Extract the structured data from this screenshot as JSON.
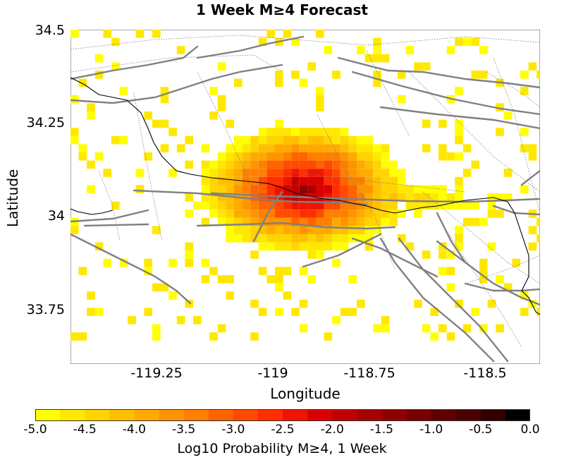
{
  "title": "1 Week M≥4 Forecast",
  "xlabel": "Longitude",
  "ylabel": "Latitude",
  "x_ticks": [
    "-119.25",
    "-119",
    "-118.75",
    "-118.5"
  ],
  "y_ticks": [
    "34.5",
    "34.25",
    "34",
    "33.75"
  ],
  "colorbar": {
    "label": "Log10 Probability M≥4, 1 Week",
    "ticks": [
      "-5.0",
      "-4.5",
      "-4.0",
      "-3.5",
      "-3.0",
      "-2.5",
      "-2.0",
      "-1.5",
      "-1.0",
      "-0.5",
      "0.0"
    ],
    "range": [
      -5.0,
      0.0
    ]
  },
  "chart_data": {
    "type": "heatmap",
    "title": "1 Week M≥4 Forecast",
    "xlabel": "Longitude",
    "ylabel": "Latitude",
    "xlim": [
      -119.5,
      -118.37
    ],
    "ylim": [
      33.6,
      34.5
    ],
    "colorbar_label": "Log10 Probability M≥4, 1 Week",
    "value_range": [
      -5.0,
      0.0
    ],
    "peak": {
      "lon": -118.84,
      "lat": 34.07,
      "value": -1.5
    },
    "grid_on": false
  }
}
